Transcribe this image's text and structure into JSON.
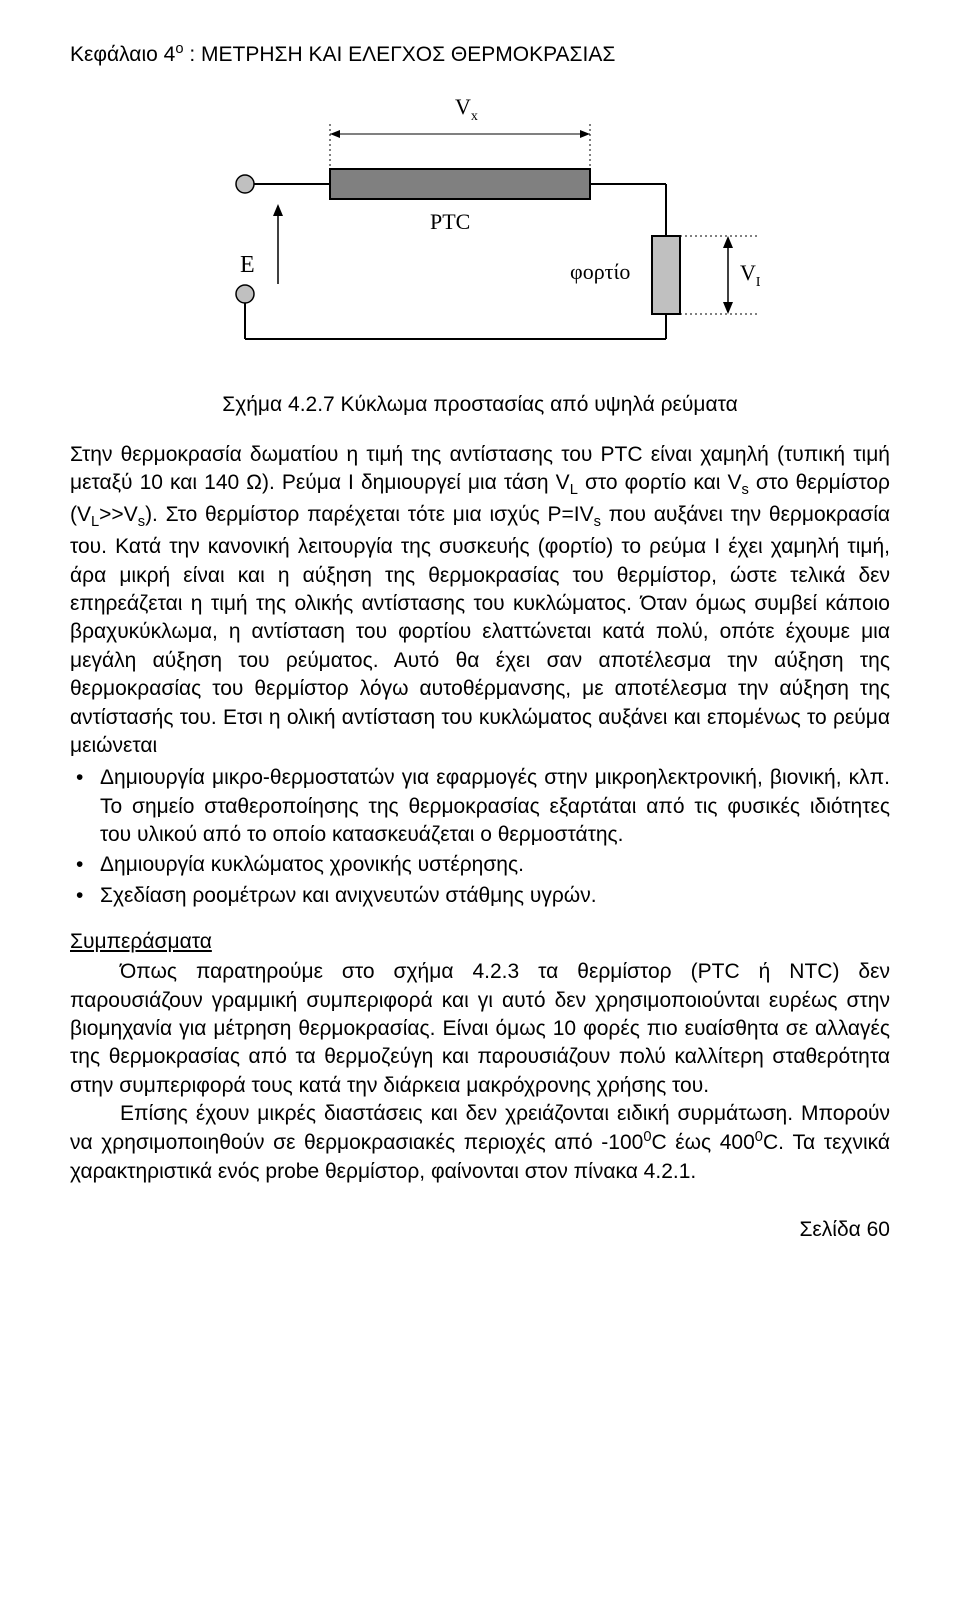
{
  "header": "Κεφάλαιο 4<sup>ο</sup> : ΜΕΤΡΗΣΗ  ΚΑΙ ΕΛΕΓΧΟΣ ΘΕΡΜΟΚΡΑΣΙΑΣ",
  "diagram": {
    "labels": {
      "vx": "V",
      "vx_sub": "x",
      "ptc": "PTC",
      "e": "E",
      "load": "φορτίο",
      "vl": "V",
      "vl_sub": "L"
    },
    "colors": {
      "fill_dark": "#808080",
      "fill_light": "#c0c0c0",
      "stroke": "#000000"
    }
  },
  "caption": "Σχήμα 4.2.7 Κύκλωμα προστασίας από υψηλά ρεύματα",
  "para1": "Στην θερμοκρασία δωματίου η τιμή της αντίστασης  του PTC είναι χαμηλή (τυπική τιμή μεταξύ 10 και 140 Ω). Ρεύμα I δημιουργεί μια τάση V<sub>L</sub> στο φορτίο και V<sub>s</sub> στο θερμίστορ (V<sub>L</sub>>>V<sub>s</sub>). Στο θερμίστορ παρέχεται τότε μια ισχύς P=IV<sub>s</sub> που αυξάνει την θερμοκρασία του. Κατά  την κανονική λειτουργία της συσκευής (φορτίο) το ρεύμα I έχει χαμηλή τιμή, άρα μικρή είναι και η αύξηση της θερμοκρασίας του θερμίστορ, ώστε τελικά δεν επηρεάζεται η τιμή της ολικής αντίστασης του κυκλώματος. Όταν όμως συμβεί κάποιο βραχυκύκλωμα, η αντίσταση του φορτίου ελαττώνεται κατά πολύ, οπότε έχουμε μια μεγάλη αύξηση του ρεύματος. Αυτό θα έχει σαν αποτέλεσμα την αύξηση της θερμοκρασίας του θερμίστορ λόγω αυτοθέρμανσης, με αποτέλεσμα την αύξηση της αντίστασής του. Ετσι η ολική αντίσταση του κυκλώματος αυξάνει και επομένως το ρεύμα μειώνεται",
  "bullets": [
    "Δημιουργία μικρο-θερμοστατών για εφαρμογές στην μικροηλεκτρονική, βιονική, κλπ. Το σημείο σταθεροποίησης της θερμοκρασίας εξαρτάται από τις φυσικές ιδιότητες του υλικού από το οποίο κατασκευάζεται ο θερμοστάτης.",
    "Δημιουργία κυκλώματος χρονικής υστέρησης.",
    "Σχεδίαση ροομέτρων και ανιχνευτών στάθμης υγρών."
  ],
  "section_heading": "Συμπεράσματα",
  "para2a": "Όπως παρατηρούμε στο σχήμα 4.2.3 τα θερμίστορ (PTC ή NTC) δεν παρουσιάζουν γραμμική συμπεριφορά και γι αυτό δεν χρησιμοποιούνται ευρέως στην βιομηχανία για μέτρηση θερμοκρασίας. Είναι όμως 10 φορές πιο ευαίσθητα σε αλλαγές της θερμοκρασίας από τα θερμοζεύγη και παρουσιάζουν πολύ καλλίτερη σταθερότητα στην συμπεριφορά τους κατά την διάρκεια μακρόχρονης χρήσης του.",
  "para2b": "Επίσης έχουν μικρές διαστάσεις και δεν χρειάζονται ειδική συρμάτωση. Μπορούν να χρησιμοποιηθούν σε θερμοκρασιακές περιοχές από -100<sup>0</sup>C  έως  400<sup>0</sup>C.  Τα τεχνικά χαρακτηριστικά ενός probe θερμίστορ, φαίνονται στον πίνακα 4.2.1.",
  "footer": "Σελίδα  60"
}
